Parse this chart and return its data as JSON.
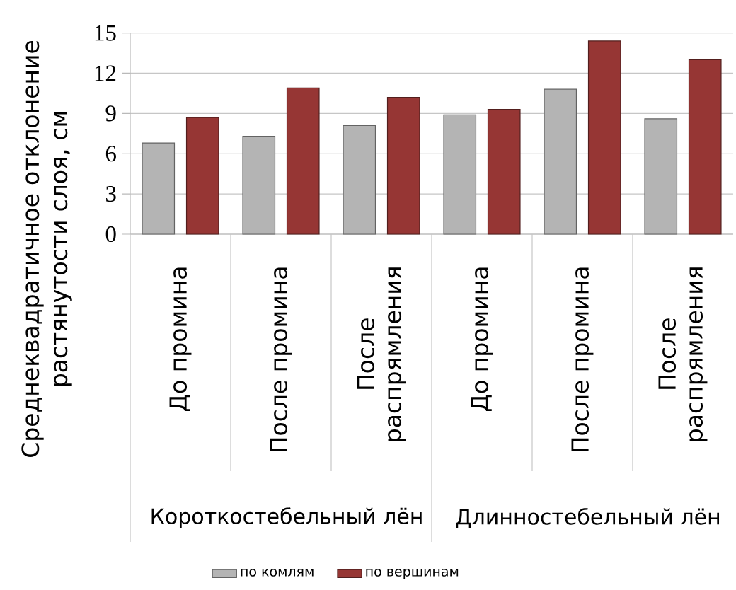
{
  "chart_data": {
    "type": "bar",
    "ylabel": "Среднеквадратичное отклонение растянутости слоя, см",
    "categories": [
      "До промина",
      "После промина",
      "После распрямления",
      "До промина",
      "После промина",
      "После распрямления"
    ],
    "series": [
      {
        "name": "по комлям",
        "color": "#b4b4b4",
        "values": [
          6.8,
          7.3,
          8.1,
          8.9,
          10.8,
          8.6
        ]
      },
      {
        "name": "по вершинам",
        "color": "#963634",
        "values": [
          8.7,
          10.9,
          10.2,
          9.3,
          14.4,
          13.0
        ]
      }
    ],
    "ylim": [
      0,
      15
    ],
    "yticks": [
      0,
      3,
      6,
      9,
      12,
      15
    ],
    "grid": "y",
    "legend": "bottom",
    "annotations": [
      "Короткостебельный лён",
      "Длинностебельный лён"
    ]
  }
}
